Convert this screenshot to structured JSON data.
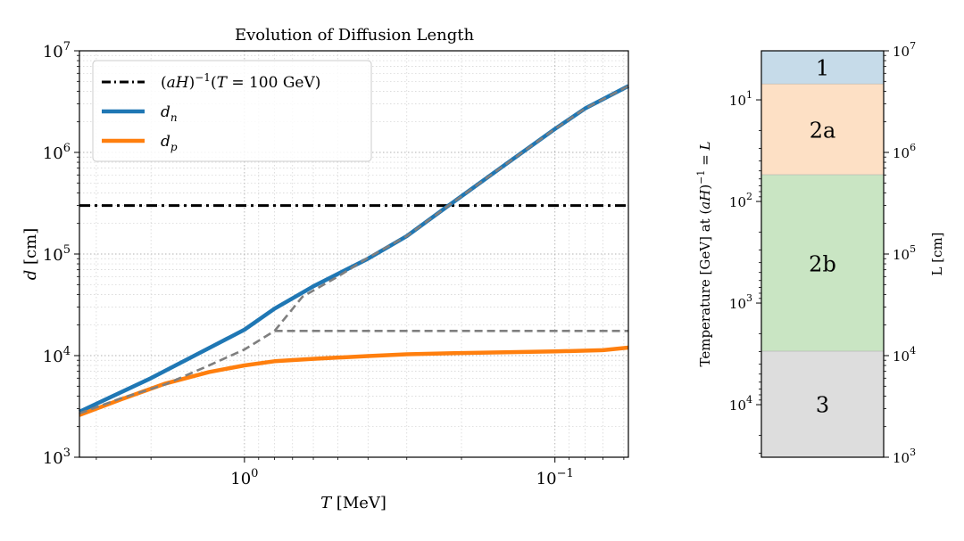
{
  "chart_data": [
    {
      "type": "line",
      "title": "Evolution of Diffusion Length",
      "xlabel": "T [MeV]",
      "ylabel": "d [cm]",
      "xscale": "log",
      "yscale": "log",
      "x_direction": "decreasing",
      "xlim": [
        3.4,
        0.058
      ],
      "ylim": [
        1000,
        10000000
      ],
      "grid": true,
      "legend_position": "top-left",
      "x_major_ticks": [
        {
          "value": 1,
          "base": "10",
          "exp": "0"
        },
        {
          "value": 0.1,
          "base": "10",
          "exp": "−1"
        }
      ],
      "y_major_ticks": [
        {
          "value": 1000,
          "base": "10",
          "exp": "3"
        },
        {
          "value": 10000,
          "base": "10",
          "exp": "4"
        },
        {
          "value": 100000,
          "base": "10",
          "exp": "5"
        },
        {
          "value": 1000000,
          "base": "10",
          "exp": "6"
        },
        {
          "value": 10000000,
          "base": "10",
          "exp": "7"
        }
      ],
      "series": [
        {
          "name": "(aH)⁻¹(T = 100 GeV)",
          "color": "#000000",
          "style": "dashdot",
          "x": [
            3.4,
            0.058
          ],
          "y": [
            300000,
            300000
          ]
        },
        {
          "name": "d_n",
          "color": "#1f77b4",
          "style": "solid",
          "x": [
            3.4,
            2.0,
            1.0,
            0.8,
            0.6,
            0.4,
            0.3,
            0.22,
            0.15,
            0.1,
            0.08,
            0.058
          ],
          "y": [
            2800,
            6000,
            18000,
            29000,
            48000,
            90000,
            150000,
            300000,
            700000,
            1700000,
            2700000,
            4500000
          ]
        },
        {
          "name": "d_p",
          "color": "#ff7f0e",
          "style": "solid",
          "x": [
            3.4,
            2.5,
            1.8,
            1.3,
            1.0,
            0.8,
            0.6,
            0.4,
            0.3,
            0.2,
            0.1,
            0.07,
            0.058
          ],
          "y": [
            2600,
            3700,
            5300,
            6900,
            8000,
            8800,
            9300,
            9900,
            10300,
            10600,
            11000,
            11300,
            12000
          ]
        },
        {
          "name": "",
          "color": "#7f7f7f",
          "style": "dashed",
          "x": [
            3.4,
            2.5,
            1.8,
            1.3,
            1.0,
            0.8,
            0.65,
            0.5,
            0.4,
            0.3,
            0.22,
            0.15,
            0.1,
            0.08,
            0.058
          ],
          "y": [
            2700,
            3800,
            5200,
            8000,
            11500,
            17500,
            38000,
            60000,
            92000,
            150000,
            300000,
            700000,
            1700000,
            2700000,
            4500000
          ]
        },
        {
          "name": "",
          "color": "#7f7f7f",
          "style": "dashed",
          "x": [
            0.8,
            0.058
          ],
          "y": [
            17500,
            17500
          ]
        }
      ]
    },
    {
      "type": "bar",
      "stacked": true,
      "ylabel_left": "Temperature [GeV] at (aH)⁻¹ = L",
      "ylabel_right": "L [cm]",
      "yscale": "log",
      "ylim_right": [
        1000,
        10000000
      ],
      "left_ticks": [
        {
          "base": "10",
          "exp": "1",
          "L_value": 3290000
        },
        {
          "base": "10",
          "exp": "2",
          "L_value": 329000
        },
        {
          "base": "10",
          "exp": "3",
          "L_value": 32900
        },
        {
          "base": "10",
          "exp": "4",
          "L_value": 3290
        }
      ],
      "right_ticks": [
        {
          "value": 1000,
          "base": "10",
          "exp": "3"
        },
        {
          "value": 10000,
          "base": "10",
          "exp": "4"
        },
        {
          "value": 100000,
          "base": "10",
          "exp": "5"
        },
        {
          "value": 1000000,
          "base": "10",
          "exp": "6"
        },
        {
          "value": 10000000,
          "base": "10",
          "exp": "7"
        }
      ],
      "regions": [
        {
          "label": "1",
          "L_low": 4700000,
          "L_high": 10000000,
          "color": "#c6dbe9"
        },
        {
          "label": "2a",
          "L_low": 600000,
          "L_high": 4700000,
          "color": "#fde0c5"
        },
        {
          "label": "2b",
          "L_low": 11000,
          "L_high": 600000,
          "color": "#c9e5c3"
        },
        {
          "label": "3",
          "L_low": 1000,
          "L_high": 11000,
          "color": "#dddddd"
        }
      ]
    }
  ]
}
